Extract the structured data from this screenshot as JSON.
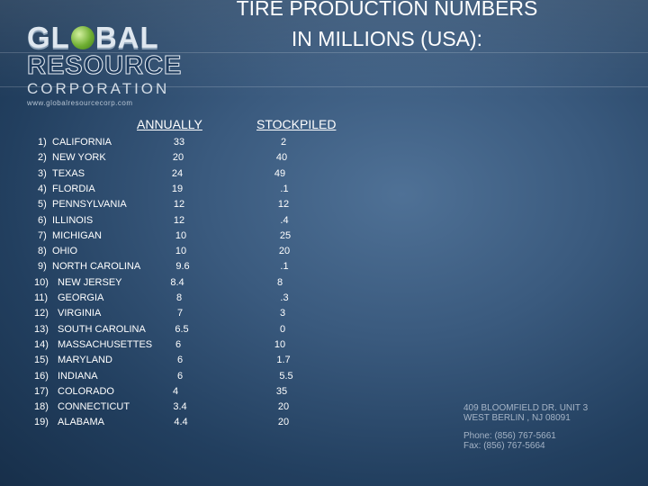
{
  "logo": {
    "line1_a": "GL",
    "line1_b": "BAL",
    "line2": "RESOURCE",
    "line3": "CORPORATION",
    "url": "www.globalresourcecorp.com"
  },
  "title": {
    "line1": "TIRE PRODUCTION NUMBERS",
    "line2": "IN MILLIONS (USA):"
  },
  "columns": {
    "annually": "ANNUALLY",
    "stockpiled": "STOCKPILED"
  },
  "rows": [
    {
      "num": "1)",
      "state": "CALIFORNIA",
      "annually": "33",
      "stockpiled": "2"
    },
    {
      "num": "2)",
      "state": "NEW YORK",
      "annually": "20",
      "stockpiled": "40"
    },
    {
      "num": "3)",
      "state": "TEXAS",
      "annually": "24",
      "stockpiled": "49"
    },
    {
      "num": "4)",
      "state": "FLORDIA",
      "annually": "19",
      "stockpiled": ".1"
    },
    {
      "num": "5)",
      "state": "PENNSYLVANIA",
      "annually": "12",
      "stockpiled": "12"
    },
    {
      "num": "6)",
      "state": "ILLINOIS",
      "annually": "12",
      "stockpiled": ".4"
    },
    {
      "num": "7)",
      "state": "MICHIGAN",
      "annually": "10",
      "stockpiled": "25"
    },
    {
      "num": "8)",
      "state": "OHIO",
      "annually": "10",
      "stockpiled": "20"
    },
    {
      "num": "9)",
      "state": "NORTH CAROLINA",
      "annually": "9.6",
      "stockpiled": ".1"
    },
    {
      "num": "10)",
      "state": "NEW JERSEY",
      "annually": "8.4",
      "stockpiled": "8"
    },
    {
      "num": "11)",
      "state": "GEORGIA",
      "annually": "8",
      "stockpiled": ".3"
    },
    {
      "num": "12)",
      "state": "VIRGINIA",
      "annually": "7",
      "stockpiled": "3"
    },
    {
      "num": "13)",
      "state": "SOUTH CAROLINA",
      "annually": "6.5",
      "stockpiled": "0"
    },
    {
      "num": "14)",
      "state": "MASSACHUSETTES",
      "annually": "6",
      "stockpiled": "10"
    },
    {
      "num": "15)",
      "state": "MARYLAND",
      "annually": "6",
      "stockpiled": "1.7"
    },
    {
      "num": "16)",
      "state": "INDIANA",
      "annually": "6",
      "stockpiled": "5.5"
    },
    {
      "num": "17)",
      "state": "COLORADO",
      "annually": "4",
      "stockpiled": "35"
    },
    {
      "num": "18)",
      "state": "CONNECTICUT",
      "annually": "3.4",
      "stockpiled": "20"
    },
    {
      "num": "19)",
      "state": "ALABAMA",
      "annually": "4.4",
      "stockpiled": "20"
    }
  ],
  "address": {
    "line1": "409 BLOOMFIELD DR. UNIT 3",
    "line2": "WEST BERLIN , NJ 08091",
    "phone": "Phone: (856) 767-5661",
    "fax": "Fax: (856) 767-5664"
  }
}
